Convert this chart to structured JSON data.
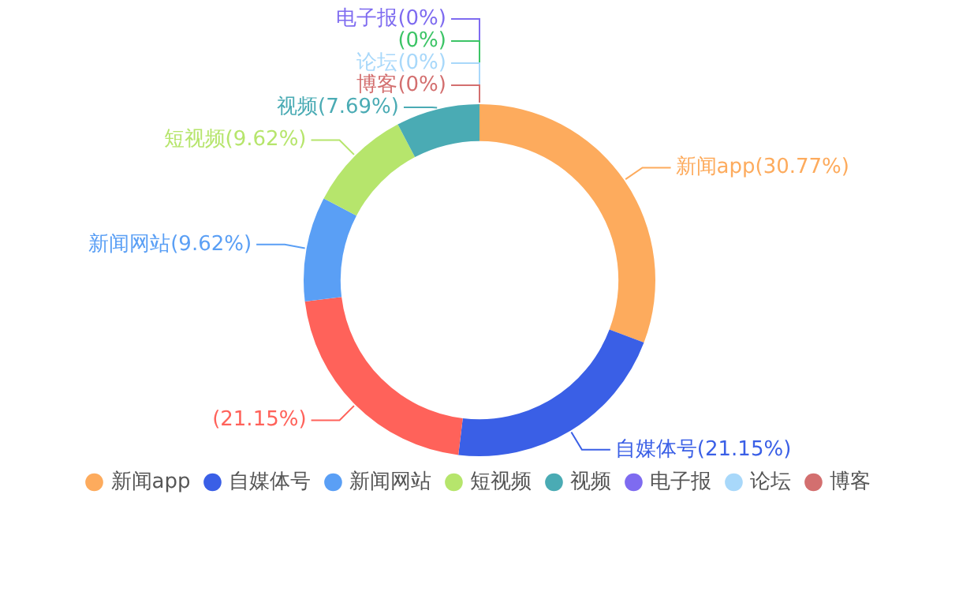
{
  "chart_data": {
    "type": "donut",
    "categories": [
      "新闻app",
      "自媒体号",
      null,
      "新闻网站",
      "短视频",
      "视频",
      "电子报",
      null,
      "论坛",
      "博客"
    ],
    "values": [
      30.77,
      21.15,
      21.15,
      9.62,
      9.62,
      7.69,
      0,
      0,
      0,
      0
    ],
    "colors": [
      "#fdab5d",
      "#3a5fe6",
      "#ff625a",
      "#5a9ff5",
      "#b6e56c",
      "#4aabb4",
      "#7e6bf0",
      "#3cc466",
      "#a8d8fa",
      "#d36f6f"
    ],
    "value_labels": [
      "新闻app(30.77%)",
      "自媒体号(21.15%)",
      "(21.15%)",
      "新闻网站(9.62%)",
      "短视频(9.62%)",
      "视频(7.69%)",
      "电子报(0%)",
      "(0%)",
      "论坛(0%)",
      "博客(0%)"
    ],
    "legend": "bottom"
  }
}
